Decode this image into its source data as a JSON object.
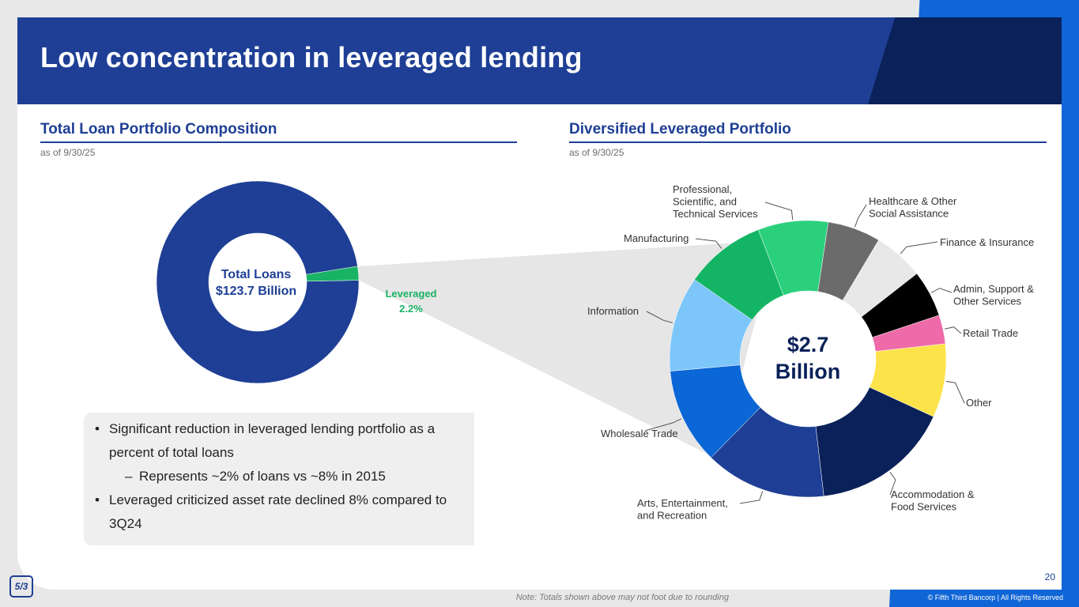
{
  "title": "Low concentration in leveraged lending",
  "left_section": {
    "title": "Total Loan Portfolio Composition",
    "as_of": "as of 9/30/25"
  },
  "right_section": {
    "title": "Diversified Leveraged Portfolio",
    "as_of": "as of 9/30/25"
  },
  "bullets": [
    {
      "level": 1,
      "text": "Significant reduction in leveraged lending portfolio as a percent of total loans"
    },
    {
      "level": 2,
      "text": "Represents ~2% of loans vs ~8% in 2015"
    },
    {
      "level": 1,
      "text": "Leveraged criticized asset rate declined 8% compared to 3Q24"
    }
  ],
  "footer": {
    "note": "Note: Totals shown above may not foot due to rounding",
    "copyright": "© Fifth Third Bancorp | All Rights Reserved",
    "page_number": "20",
    "logo_text": "5/3"
  },
  "colors": {
    "brand_blue": "#1e3f95",
    "navy": "#0a2159",
    "bright_blue": "#1066d6",
    "leveraged_green": "#19b365"
  },
  "chart_data": [
    {
      "type": "pie",
      "donut": true,
      "center_label": [
        "Total Loans",
        "$123.7 Billion"
      ],
      "slices": [
        {
          "label": "",
          "value": 97.8,
          "color": "#1e3f95"
        },
        {
          "label": "Leveraged",
          "value_label": "2.2%",
          "value": 2.2,
          "color": "#19b365"
        }
      ]
    },
    {
      "type": "pie",
      "donut": true,
      "center_label": [
        "$2.7",
        "Billion"
      ],
      "slices": [
        {
          "label": "Professional, Scientific, and Technical Services",
          "value": 7.8,
          "color": "#2bd07d"
        },
        {
          "label": "Healthcare & Other Social Assistance",
          "value": 5.9,
          "color": "#6b6b6b"
        },
        {
          "label": "Finance & Insurance",
          "value": 5.6,
          "color": "#e8e8e8"
        },
        {
          "label": "Admin, Support & Other Services",
          "value": 5.2,
          "color": "#000000"
        },
        {
          "label": "Retail Trade",
          "value": 3.2,
          "color": "#ef6aa8"
        },
        {
          "label": "Other",
          "value": 8.2,
          "color": "#fde34a"
        },
        {
          "label": "Accommodation & Food Services",
          "value": 15.5,
          "color": "#0a2159"
        },
        {
          "label": "Arts, Entertainment, and Recreation",
          "value": 13.5,
          "color": "#1e3f95"
        },
        {
          "label": "Wholesale Trade",
          "value": 10.7,
          "color": "#0b66d6"
        },
        {
          "label": "Information",
          "value": 10.6,
          "color": "#7cc6fa"
        },
        {
          "label": "Manufacturing",
          "value": 9.0,
          "color": "#13b564"
        }
      ]
    }
  ]
}
